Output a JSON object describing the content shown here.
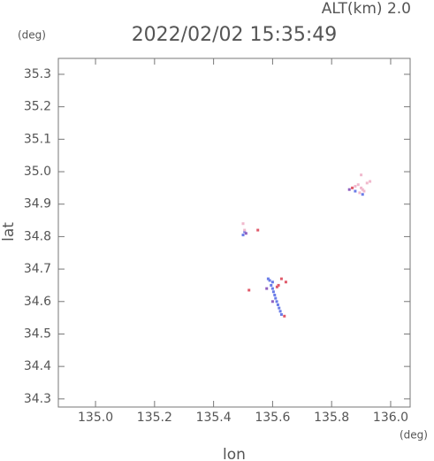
{
  "chart_data": {
    "type": "scatter",
    "title": "2022/02/02 15:35:49",
    "subtitle": "ALT(km)  2.0",
    "y_unit": "(deg)",
    "x_unit": "(deg)",
    "x_label": "lon",
    "y_label": "lat",
    "xlim": [
      134.874,
      136.066
    ],
    "ylim": [
      34.275,
      35.349
    ],
    "xticks": [
      {
        "value": 135.0,
        "label": "135.0"
      },
      {
        "value": 135.2,
        "label": "135.2"
      },
      {
        "value": 135.4,
        "label": "135.4"
      },
      {
        "value": 135.6,
        "label": "135.6"
      },
      {
        "value": 135.8,
        "label": "135.8"
      },
      {
        "value": 136.0,
        "label": "136.0"
      }
    ],
    "yticks": [
      34.3,
      34.4,
      34.5,
      34.6,
      34.7,
      34.8,
      34.9,
      {
        "value": 35.0,
        "label": "35.0"
      },
      35.1,
      35.2,
      35.3
    ],
    "series": [
      {
        "color": "#6a7ce8",
        "x": [
          135.59,
          135.595,
          135.6,
          135.603,
          135.607,
          135.61,
          135.614,
          135.618,
          135.622,
          135.626,
          135.63,
          135.585,
          135.6,
          135.505,
          135.5,
          135.88,
          135.905
        ],
        "y": [
          34.665,
          34.65,
          34.64,
          34.63,
          34.62,
          34.61,
          34.6,
          34.59,
          34.58,
          34.57,
          34.56,
          34.67,
          34.66,
          34.815,
          34.805,
          34.94,
          34.93
        ]
      },
      {
        "color": "#e05a6a",
        "x": [
          135.63,
          135.645,
          135.62,
          135.52,
          135.64,
          135.615,
          135.87,
          135.55
        ],
        "y": [
          34.67,
          34.66,
          34.65,
          34.635,
          34.555,
          34.645,
          34.95,
          34.82
        ]
      },
      {
        "color": "#f0b8cc",
        "x": [
          135.89,
          135.9,
          135.91,
          135.92,
          135.93,
          135.88,
          135.9,
          135.5,
          135.505,
          135.905,
          135.895
        ],
        "y": [
          34.96,
          34.95,
          34.94,
          34.965,
          34.97,
          34.955,
          34.99,
          34.84,
          34.82,
          34.945,
          34.935
        ]
      },
      {
        "color": "#9060c0",
        "x": [
          135.51,
          135.86,
          135.58,
          135.6
        ],
        "y": [
          34.81,
          34.945,
          34.64,
          34.6
        ]
      }
    ]
  }
}
